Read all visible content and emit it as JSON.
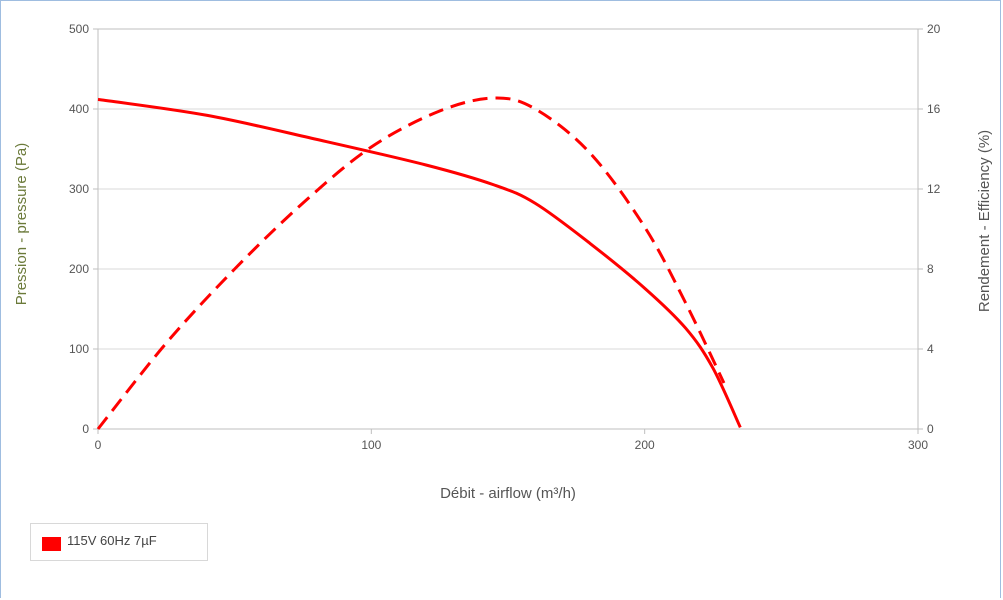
{
  "colors": {
    "series": "#ff0000",
    "grid": "#d9d9d9",
    "axis": "#bfbfbf",
    "ylabel_left": "#6b7a3a",
    "ylabel_right": "#555555"
  },
  "chart_data": {
    "type": "line",
    "xlabel": "Débit - airflow (m³/h)",
    "ylabel": "Pression - pressure (Pa)",
    "y2label": "Rendement - Efficiency (%)",
    "xlim": [
      0,
      300
    ],
    "ylim": [
      0,
      500
    ],
    "y2lim": [
      0,
      20
    ],
    "x_ticks": [
      "0",
      "100",
      "200",
      "300"
    ],
    "y_ticks": [
      "0",
      "100",
      "200",
      "300",
      "400",
      "500"
    ],
    "y2_ticks": [
      "0",
      "4",
      "8",
      "12",
      "16",
      "20"
    ],
    "grid": true,
    "legend_position": "bottom-left",
    "series": [
      {
        "name": "115V 60Hz 7µF",
        "axis": "left",
        "style": "solid",
        "points": [
          [
            0,
            412
          ],
          [
            40,
            392
          ],
          [
            80,
            362
          ],
          [
            120,
            330
          ],
          [
            145,
            305
          ],
          [
            160,
            282
          ],
          [
            180,
            232
          ],
          [
            200,
            176
          ],
          [
            215,
            126
          ],
          [
            225,
            76
          ],
          [
            235,
            2
          ]
        ]
      },
      {
        "axis": "right",
        "style": "dashed",
        "points": [
          [
            0,
            0
          ],
          [
            25,
            4.3
          ],
          [
            50,
            8.0
          ],
          [
            75,
            11.3
          ],
          [
            100,
            14.1
          ],
          [
            125,
            15.9
          ],
          [
            145,
            16.55
          ],
          [
            160,
            16.0
          ],
          [
            180,
            13.8
          ],
          [
            200,
            10.1
          ],
          [
            215,
            6.3
          ],
          [
            229,
            2.3
          ]
        ]
      }
    ]
  }
}
